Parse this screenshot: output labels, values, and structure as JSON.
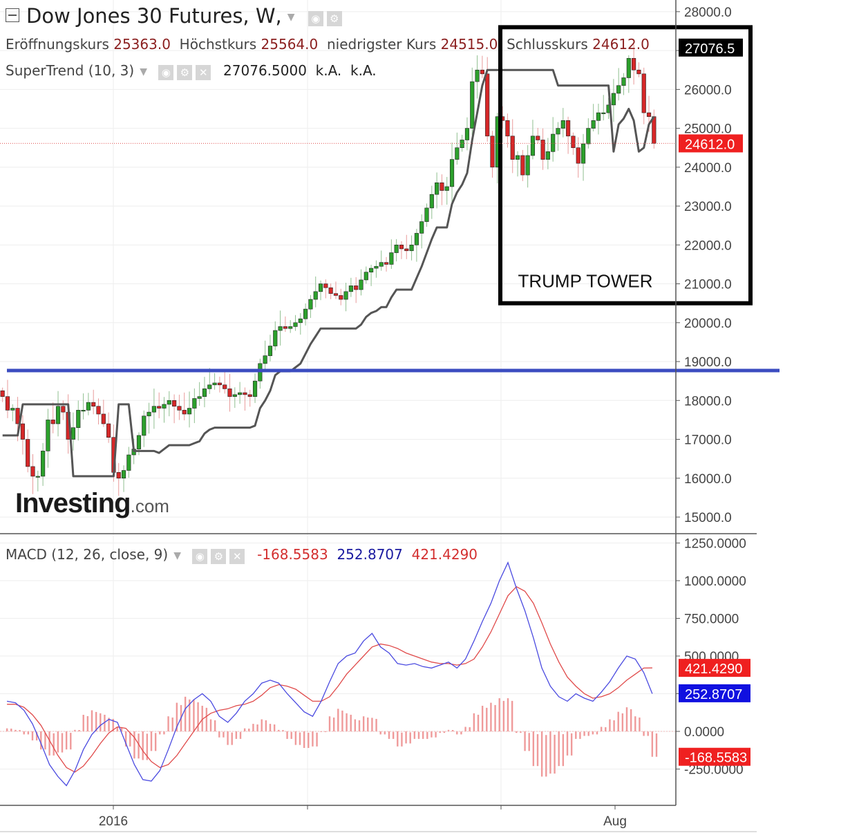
{
  "header": {
    "title": "Dow Jones 30 Futures, W,",
    "ohlc": [
      {
        "label": "Eröffnungskurs",
        "value": "25363.0"
      },
      {
        "label": "Höchstkurs",
        "value": "25564.0"
      },
      {
        "label": "niedrigster Kurs",
        "value": "24515.0"
      },
      {
        "label": "Schlusskurs",
        "value": "24612.0"
      }
    ]
  },
  "supertrend": {
    "label": "SuperTrend (10, 3)",
    "value": "27076.5000",
    "v2": "k.A.",
    "v3": "k.A."
  },
  "macd": {
    "label": "MACD (12, 26, close, 9)",
    "hist": "-168.5583",
    "macd": "252.8707",
    "signal": "421.4290"
  },
  "logo": {
    "main": "Investing",
    "suffix": ".com"
  },
  "icons": [
    "eye-icon",
    "gear-icon",
    "close-icon"
  ],
  "colors": {
    "up": "#2ca02c",
    "down": "#d62728",
    "supertrend": "#555555",
    "support_line": "#3b4cc0",
    "macd_line": "#4a4ae0",
    "signal_line": "#e04a4a",
    "histogram": "#ef9a9a"
  },
  "chart_data": [
    {
      "type": "candlestick",
      "title": "Dow Jones 30 Futures, W,",
      "ylim": [
        14500,
        28500
      ],
      "yticks": [
        15000,
        16000,
        17000,
        18000,
        19000,
        20000,
        21000,
        22000,
        23000,
        24000,
        25000,
        26000,
        27000,
        28000
      ],
      "ytick_labels": [
        "15000.0",
        "16000.0",
        "17000.0",
        "18000.0",
        "19000.0",
        "20000.0",
        "21000.0",
        "22000.0",
        "23000.0",
        "24000.0",
        "25000.0",
        "26000.0",
        "",
        "28000.0"
      ],
      "price_markers": [
        {
          "label": "27076.5",
          "value": 27076.5,
          "style": "black"
        },
        {
          "label": "24612.0",
          "value": 24612.0,
          "style": "red"
        }
      ],
      "xtick_labels": [
        "2016",
        "Aug"
      ],
      "close_series": [
        18100,
        17750,
        17800,
        17400,
        17000,
        16300,
        16050,
        16050,
        16700,
        17500,
        17400,
        17850,
        17700,
        17000,
        17300,
        17750,
        17750,
        17950,
        17850,
        17650,
        17400,
        17050,
        16150,
        16000,
        16200,
        16600,
        16750,
        17100,
        17600,
        17700,
        17850,
        17800,
        17900,
        18000,
        17850,
        17750,
        17650,
        17800,
        18050,
        18100,
        18300,
        18400,
        18450,
        18400,
        18300,
        18100,
        18150,
        18200,
        18150,
        18100,
        18500,
        18950,
        19150,
        19400,
        19800,
        19900,
        19850,
        19900,
        20000,
        20100,
        20350,
        20600,
        20800,
        21000,
        20900,
        20750,
        20700,
        20600,
        20800,
        20950,
        20850,
        21100,
        21300,
        21400,
        21450,
        21550,
        21500,
        21800,
        22000,
        21900,
        21850,
        22000,
        22300,
        22600,
        22950,
        23300,
        23600,
        23400,
        23500,
        24200,
        24500,
        24700,
        25000,
        26200,
        26500,
        26400,
        24800,
        24000,
        25300,
        25200,
        24800,
        24200,
        24300,
        23800,
        24300,
        24800,
        24700,
        24200,
        24400,
        24850,
        25000,
        25200,
        24800,
        24500,
        24100,
        24600,
        25000,
        25200,
        25400,
        25400,
        25600,
        25900,
        26100,
        26300,
        26800,
        26500,
        26400,
        25400,
        25300,
        24612
      ],
      "supertrend": [
        {
          "from": "2015-10",
          "to": "2015-12",
          "value": 17100
        },
        {
          "from": "2015-12",
          "to": "2016-02",
          "value": 17900
        },
        {
          "from": "2016-02",
          "to": "2016-03",
          "value": 16050
        },
        {
          "from": "2016-03",
          "to": "2016-04",
          "value": 17900
        },
        {
          "from": "2016-04",
          "to": "2016-05",
          "value": 16050
        },
        {
          "from": "2016-05",
          "to": "2016-07",
          "value": 17900
        },
        {
          "from": "2016-07",
          "to": "2018-02",
          "value": "rising trailing stop from 16050 to 26500"
        },
        {
          "from": "2018-02",
          "to": "2018-10",
          "value": "stop near 26100-26500, flipping to 24400-27076"
        }
      ],
      "horizontal_line": {
        "value": 18770,
        "label": ""
      },
      "annotation_box": {
        "label": "TRUMP TOWER",
        "y_range": [
          20500,
          27600
        ]
      }
    },
    {
      "type": "line",
      "title": "MACD (12, 26, close, 9)",
      "ylim": [
        -500,
        1300
      ],
      "yticks": [
        -250,
        0,
        250,
        500,
        750,
        1000,
        1250
      ],
      "ytick_labels": [
        "-250.0000",
        "0.0000",
        "",
        "500.0000",
        "750.0000",
        "1000.0000",
        "1250.0000"
      ],
      "price_markers": [
        {
          "label": "421.4290",
          "value": 421.429,
          "style": "red"
        },
        {
          "label": "252.8707",
          "value": 252.8707,
          "style": "blue"
        },
        {
          "label": "-168.5583",
          "value": -168.5583,
          "style": "red"
        }
      ],
      "series": [
        {
          "name": "MACD",
          "values": [
            200,
            190,
            140,
            50,
            -80,
            -220,
            -300,
            -360,
            -260,
            -120,
            -20,
            40,
            80,
            60,
            -80,
            -220,
            -320,
            -330,
            -260,
            -120,
            30,
            150,
            210,
            250,
            200,
            100,
            60,
            120,
            200,
            250,
            320,
            340,
            320,
            250,
            190,
            130,
            100,
            200,
            330,
            450,
            500,
            520,
            600,
            650,
            560,
            520,
            450,
            440,
            450,
            430,
            420,
            440,
            460,
            420,
            480,
            600,
            730,
            850,
            1000,
            1120,
            950,
            800,
            620,
            420,
            300,
            230,
            200,
            250,
            220,
            200,
            260,
            330,
            420,
            500,
            480,
            390,
            250
          ]
        },
        {
          "name": "Signal",
          "values": [
            180,
            180,
            160,
            110,
            40,
            -60,
            -160,
            -240,
            -270,
            -230,
            -160,
            -80,
            -10,
            30,
            20,
            -40,
            -130,
            -200,
            -240,
            -220,
            -160,
            -80,
            0,
            80,
            120,
            140,
            150,
            170,
            180,
            200,
            240,
            290,
            310,
            300,
            280,
            240,
            200,
            200,
            230,
            300,
            380,
            440,
            500,
            560,
            580,
            570,
            550,
            520,
            500,
            480,
            460,
            450,
            450,
            440,
            450,
            480,
            560,
            660,
            780,
            900,
            960,
            930,
            850,
            720,
            580,
            460,
            360,
            300,
            250,
            220,
            230,
            250,
            290,
            340,
            380,
            420,
            421
          ]
        },
        {
          "name": "Histogram",
          "values": [
            20,
            10,
            -20,
            -60,
            -120,
            -160,
            -140,
            -120,
            10,
            110,
            140,
            120,
            90,
            30,
            -100,
            -180,
            -190,
            -130,
            -20,
            100,
            190,
            230,
            210,
            170,
            80,
            -40,
            -90,
            -50,
            20,
            50,
            80,
            50,
            10,
            -50,
            -90,
            -110,
            -100,
            0,
            100,
            150,
            120,
            80,
            100,
            90,
            -20,
            -50,
            -100,
            -80,
            -50,
            -50,
            -40,
            -10,
            10,
            -20,
            30,
            120,
            170,
            190,
            220,
            220,
            -10,
            -130,
            -230,
            -300,
            -280,
            -230,
            -160,
            -50,
            -30,
            -20,
            30,
            80,
            130,
            160,
            100,
            -30,
            -168.5583
          ]
        }
      ]
    }
  ]
}
